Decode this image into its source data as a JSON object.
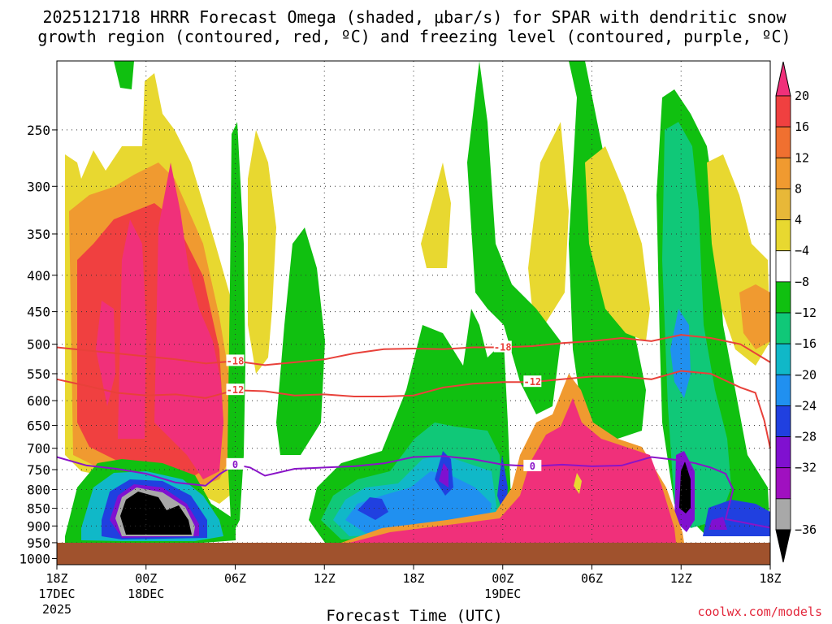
{
  "chart_data": {
    "type": "heatmap",
    "title": "2025121718 HRRR Forecast Omega (shaded, μbar/s) for SPAR with dendritic snow",
    "subtitle": "growth region (contoured, red, ºC) and freezing level (contoured, purple, ºC)",
    "xlabel": "Forecast Time (UTC)",
    "ylabel": "",
    "y_scale": "log",
    "ylim": [
      1020,
      200
    ],
    "y_ticks": [
      250,
      300,
      350,
      400,
      450,
      500,
      550,
      600,
      650,
      700,
      750,
      800,
      850,
      900,
      950,
      1000
    ],
    "x_ticks": [
      {
        "hour": 0,
        "label": "18Z",
        "label2": "17DEC",
        "label3": "2025"
      },
      {
        "hour": 6,
        "label": "00Z",
        "label2": "18DEC"
      },
      {
        "hour": 12,
        "label": "06Z"
      },
      {
        "hour": 18,
        "label": "12Z"
      },
      {
        "hour": 24,
        "label": "18Z"
      },
      {
        "hour": 30,
        "label": "00Z",
        "label2": "19DEC"
      },
      {
        "hour": 36,
        "label": "06Z"
      },
      {
        "hour": 42,
        "label": "12Z"
      },
      {
        "hour": 48,
        "label": "18Z"
      }
    ],
    "xlim": [
      0,
      48
    ],
    "colorbar": {
      "ticks": [
        "20",
        "16",
        "12",
        "8",
        "4",
        "−4",
        "−8",
        "−12",
        "−16",
        "−20",
        "−24",
        "−28",
        "−32",
        "−36"
      ],
      "colors_top_to_bottom": [
        "#f0307a",
        "#f04040",
        "#f07030",
        "#f09a30",
        "#e8b838",
        "#e8d830",
        "#ffffff",
        "#10c010",
        "#10c878",
        "#10b8c8",
        "#2090f0",
        "#2040e0",
        "#8010d0",
        "#a010c0",
        "#a8a8a8",
        "#000000"
      ]
    },
    "grid": true,
    "legend": "colorbar-right",
    "contours": [
      {
        "name": "-18",
        "color": "#e8413a",
        "points": [
          [
            0,
            505
          ],
          [
            2,
            510
          ],
          [
            4,
            515
          ],
          [
            6,
            520
          ],
          [
            8,
            525
          ],
          [
            10,
            532
          ],
          [
            12,
            528
          ],
          [
            14,
            535
          ],
          [
            16,
            530
          ],
          [
            18,
            525
          ],
          [
            20,
            515
          ],
          [
            22,
            508
          ],
          [
            24,
            507
          ],
          [
            26,
            508
          ],
          [
            28,
            505
          ],
          [
            30,
            505
          ],
          [
            32,
            503
          ],
          [
            34,
            498
          ],
          [
            36,
            495
          ],
          [
            38,
            490
          ],
          [
            40,
            495
          ],
          [
            42,
            485
          ],
          [
            44,
            490
          ],
          [
            46,
            500
          ],
          [
            48,
            530
          ]
        ]
      },
      {
        "name": "-12",
        "color": "#e8413a",
        "points": [
          [
            0,
            560
          ],
          [
            2,
            572
          ],
          [
            4,
            585
          ],
          [
            6,
            590
          ],
          [
            8,
            588
          ],
          [
            10,
            595
          ],
          [
            12,
            580
          ],
          [
            14,
            582
          ],
          [
            16,
            590
          ],
          [
            18,
            588
          ],
          [
            20,
            592
          ],
          [
            22,
            592
          ],
          [
            24,
            590
          ],
          [
            26,
            575
          ],
          [
            28,
            568
          ],
          [
            30,
            565
          ],
          [
            32,
            565
          ],
          [
            34,
            560
          ],
          [
            36,
            555
          ],
          [
            38,
            555
          ],
          [
            40,
            560
          ],
          [
            42,
            545
          ],
          [
            44,
            550
          ],
          [
            46,
            575
          ],
          [
            47,
            585
          ],
          [
            47.6,
            640
          ],
          [
            48,
            700
          ]
        ]
      },
      {
        "name": "0",
        "color": "#8a14c8",
        "points": [
          [
            0,
            720
          ],
          [
            2,
            740
          ],
          [
            4,
            748
          ],
          [
            6,
            760
          ],
          [
            8,
            782
          ],
          [
            10,
            790
          ],
          [
            11,
            760
          ],
          [
            12,
            738
          ],
          [
            13,
            745
          ],
          [
            14,
            765
          ],
          [
            16,
            748
          ],
          [
            18,
            745
          ],
          [
            20,
            742
          ],
          [
            22,
            735
          ],
          [
            24,
            720
          ],
          [
            26,
            718
          ],
          [
            28,
            725
          ],
          [
            30,
            738
          ],
          [
            32,
            742
          ],
          [
            34,
            738
          ],
          [
            36,
            742
          ],
          [
            38,
            740
          ],
          [
            40,
            720
          ],
          [
            42,
            728
          ],
          [
            43,
            735
          ],
          [
            44,
            745
          ],
          [
            45,
            760
          ],
          [
            45.5,
            800
          ],
          [
            45,
            880
          ],
          [
            48,
            905
          ]
        ]
      }
    ]
  },
  "watermark": "coolwx.com/models"
}
